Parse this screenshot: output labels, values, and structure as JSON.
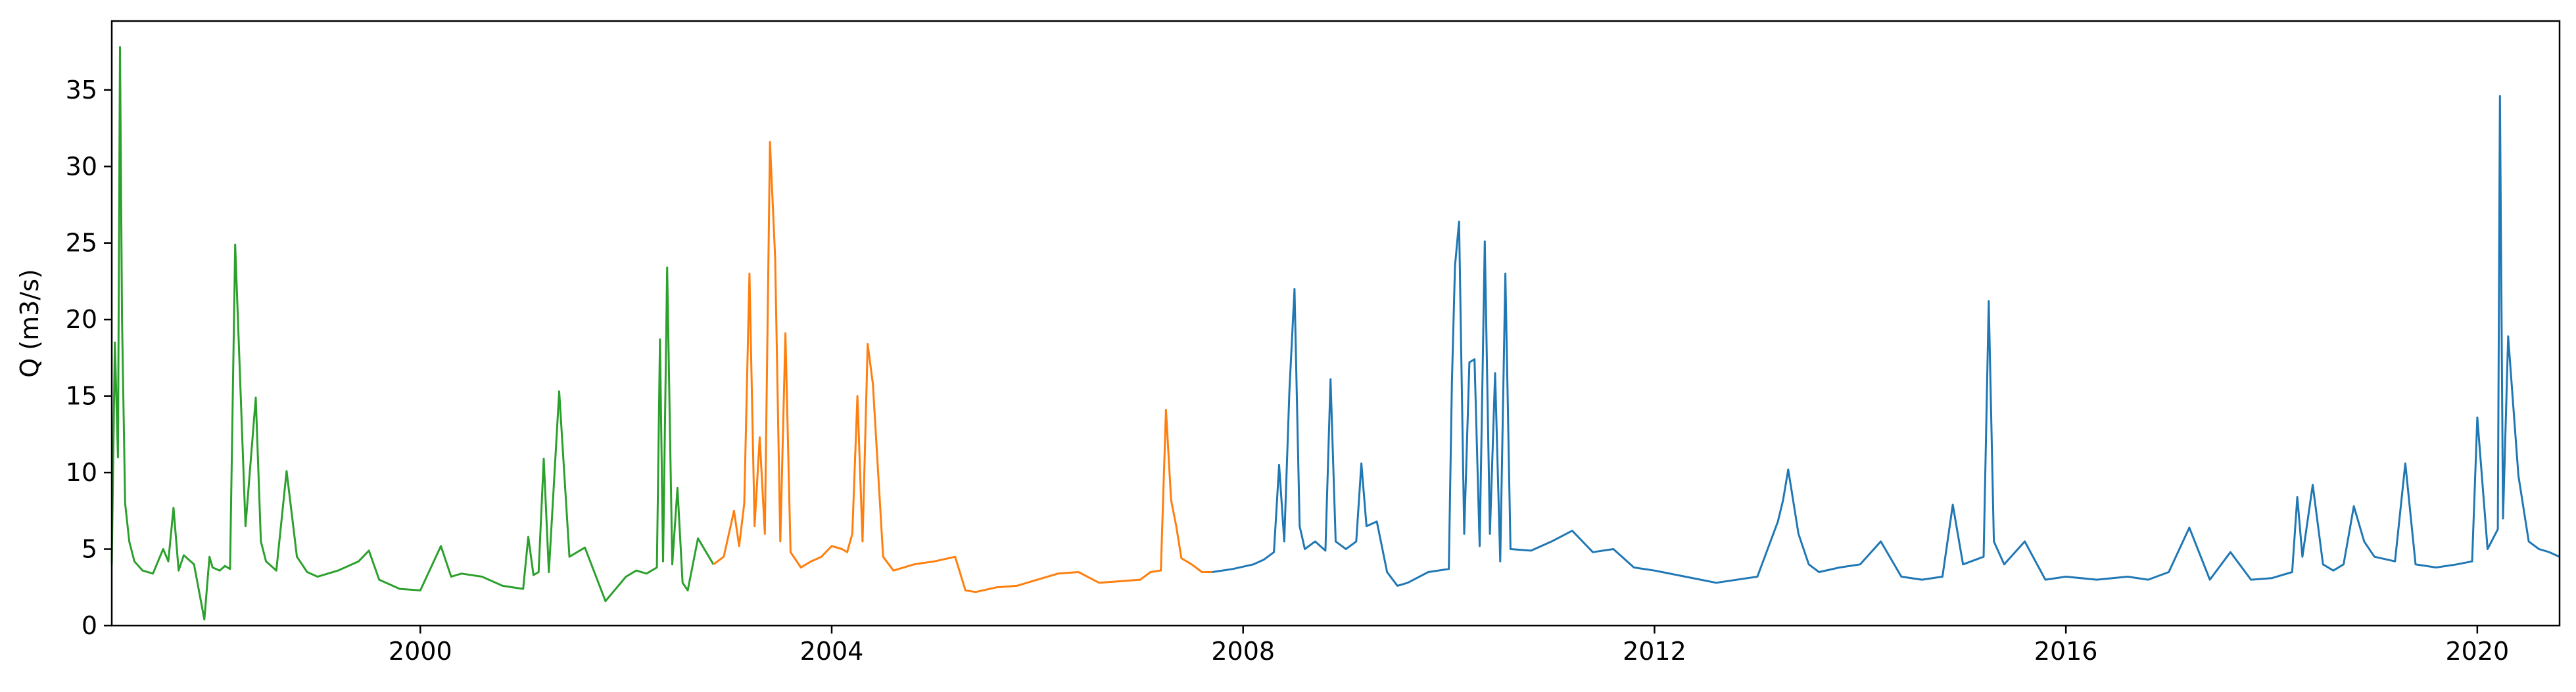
{
  "chart_data": {
    "type": "line",
    "title": "",
    "xlabel": "",
    "ylabel": "Q (m3/s)",
    "x_unit": "year",
    "xlim": [
      1997.0,
      2020.8
    ],
    "ylim": [
      0,
      39.5
    ],
    "xticks": [
      2000,
      2004,
      2008,
      2012,
      2016,
      2020
    ],
    "xtick_labels": [
      "2000",
      "2004",
      "2008",
      "2012",
      "2016",
      "2020"
    ],
    "yticks": [
      0,
      5,
      10,
      15,
      20,
      25,
      30,
      35
    ],
    "ytick_labels": [
      "0",
      "5",
      "10",
      "15",
      "20",
      "25",
      "30",
      "35"
    ],
    "grid": false,
    "series": [
      {
        "color": "#2ca02c",
        "x": [
          1997.0,
          1997.03,
          1997.06,
          1997.08,
          1997.1,
          1997.13,
          1997.17,
          1997.22,
          1997.3,
          1997.4,
          1997.5,
          1997.55,
          1997.6,
          1997.65,
          1997.7,
          1997.8,
          1997.9,
          1997.95,
          1997.98,
          1998.05,
          1998.1,
          1998.15,
          1998.2,
          1998.3,
          1998.4,
          1998.45,
          1998.5,
          1998.55,
          1998.6,
          1998.7,
          1998.8,
          1998.9,
          1999.0,
          1999.2,
          1999.4,
          1999.5,
          1999.6,
          1999.8,
          2000.0,
          2000.2,
          2000.3,
          2000.4,
          2000.6,
          2000.8,
          2001.0,
          2001.05,
          2001.1,
          2001.15,
          2001.2,
          2001.25,
          2001.35,
          2001.45,
          2001.6,
          2001.8,
          2002.0,
          2002.1,
          2002.2,
          2002.3,
          2002.33,
          2002.36,
          2002.4,
          2002.45,
          2002.5,
          2002.55,
          2002.6,
          2002.7,
          2002.85
        ],
        "y": [
          4.0,
          18.5,
          11.0,
          37.8,
          20.0,
          8.0,
          5.5,
          4.2,
          3.6,
          3.4,
          5.0,
          4.2,
          7.7,
          3.6,
          4.6,
          4.0,
          0.4,
          4.5,
          3.8,
          3.6,
          3.9,
          3.7,
          24.9,
          6.5,
          14.9,
          5.5,
          4.2,
          3.9,
          3.6,
          10.1,
          4.5,
          3.5,
          3.2,
          3.6,
          4.2,
          4.9,
          3.0,
          2.4,
          2.3,
          5.2,
          3.2,
          3.4,
          3.2,
          2.6,
          2.4,
          5.8,
          3.3,
          3.5,
          10.9,
          3.5,
          15.3,
          4.5,
          5.1,
          1.6,
          3.2,
          3.6,
          3.4,
          3.8,
          18.7,
          4.2,
          23.4,
          4.0,
          9.0,
          2.8,
          2.3,
          5.7,
          4.0
        ]
      },
      {
        "color": "#ff7f0e",
        "x": [
          2002.85,
          2002.95,
          2003.05,
          2003.1,
          2003.15,
          2003.2,
          2003.25,
          2003.3,
          2003.35,
          2003.4,
          2003.45,
          2003.5,
          2003.55,
          2003.6,
          2003.7,
          2003.8,
          2003.9,
          2004.0,
          2004.1,
          2004.15,
          2004.2,
          2004.25,
          2004.3,
          2004.35,
          2004.4,
          2004.5,
          2004.6,
          2004.8,
          2005.0,
          2005.2,
          2005.3,
          2005.4,
          2005.6,
          2005.8,
          2006.0,
          2006.2,
          2006.4,
          2006.6,
          2006.8,
          2007.0,
          2007.1,
          2007.2,
          2007.25,
          2007.3,
          2007.35,
          2007.4,
          2007.5,
          2007.6,
          2007.7
        ],
        "y": [
          4.0,
          4.5,
          7.5,
          5.2,
          8.0,
          23.0,
          6.5,
          12.3,
          6.0,
          31.6,
          24.0,
          5.5,
          19.1,
          4.8,
          3.8,
          4.2,
          4.5,
          5.2,
          5.0,
          4.8,
          6.0,
          15.0,
          5.5,
          18.4,
          15.8,
          4.5,
          3.6,
          4.0,
          4.2,
          4.5,
          2.3,
          2.2,
          2.5,
          2.6,
          3.0,
          3.4,
          3.5,
          2.8,
          2.9,
          3.0,
          3.5,
          3.6,
          14.1,
          8.2,
          6.5,
          4.4,
          4.0,
          3.5,
          3.5
        ]
      },
      {
        "color": "#1f77b4",
        "x": [
          2007.7,
          2007.9,
          2008.1,
          2008.2,
          2008.3,
          2008.35,
          2008.4,
          2008.45,
          2008.5,
          2008.55,
          2008.6,
          2008.7,
          2008.8,
          2008.85,
          2008.9,
          2009.0,
          2009.1,
          2009.15,
          2009.2,
          2009.3,
          2009.4,
          2009.5,
          2009.6,
          2009.8,
          2010.0,
          2010.03,
          2010.06,
          2010.1,
          2010.15,
          2010.2,
          2010.25,
          2010.3,
          2010.35,
          2010.4,
          2010.45,
          2010.5,
          2010.55,
          2010.6,
          2010.8,
          2011.0,
          2011.2,
          2011.4,
          2011.6,
          2011.8,
          2012.0,
          2012.3,
          2012.6,
          2012.9,
          2013.0,
          2013.2,
          2013.25,
          2013.3,
          2013.4,
          2013.5,
          2013.6,
          2013.8,
          2014.0,
          2014.2,
          2014.4,
          2014.6,
          2014.8,
          2014.9,
          2015.0,
          2015.2,
          2015.25,
          2015.3,
          2015.4,
          2015.6,
          2015.8,
          2016.0,
          2016.3,
          2016.6,
          2016.8,
          2017.0,
          2017.2,
          2017.4,
          2017.6,
          2017.8,
          2018.0,
          2018.2,
          2018.25,
          2018.3,
          2018.4,
          2018.5,
          2018.6,
          2018.7,
          2018.8,
          2018.9,
          2019.0,
          2019.2,
          2019.3,
          2019.4,
          2019.6,
          2019.8,
          2019.95,
          2020.0,
          2020.1,
          2020.2,
          2020.22,
          2020.25,
          2020.3,
          2020.4,
          2020.5,
          2020.6,
          2020.7,
          2020.8
        ],
        "y": [
          3.5,
          3.7,
          4.0,
          4.3,
          4.8,
          10.5,
          5.5,
          15.3,
          22.0,
          6.5,
          5.0,
          5.5,
          4.9,
          16.1,
          5.5,
          5.0,
          5.5,
          10.6,
          6.5,
          6.8,
          3.5,
          2.6,
          2.8,
          3.5,
          3.7,
          15.9,
          23.5,
          26.4,
          6.0,
          17.2,
          17.4,
          5.2,
          25.1,
          6.0,
          16.5,
          4.2,
          23.0,
          5.0,
          4.9,
          5.5,
          6.2,
          4.8,
          5.0,
          3.8,
          3.6,
          3.2,
          2.8,
          3.1,
          3.2,
          6.8,
          8.2,
          10.2,
          6.0,
          4.0,
          3.5,
          3.8,
          4.0,
          5.5,
          3.2,
          3.0,
          3.2,
          7.9,
          4.0,
          4.5,
          21.2,
          5.5,
          4.0,
          5.5,
          3.0,
          3.2,
          3.0,
          3.2,
          3.0,
          3.5,
          6.4,
          3.0,
          4.8,
          3.0,
          3.1,
          3.5,
          8.4,
          4.5,
          9.2,
          4.0,
          3.6,
          4.0,
          7.8,
          5.5,
          4.5,
          4.2,
          10.6,
          4.0,
          3.8,
          4.0,
          4.2,
          13.6,
          5.0,
          6.3,
          34.6,
          7.0,
          18.9,
          9.8,
          5.5,
          5.0,
          4.8,
          4.5
        ]
      }
    ]
  }
}
